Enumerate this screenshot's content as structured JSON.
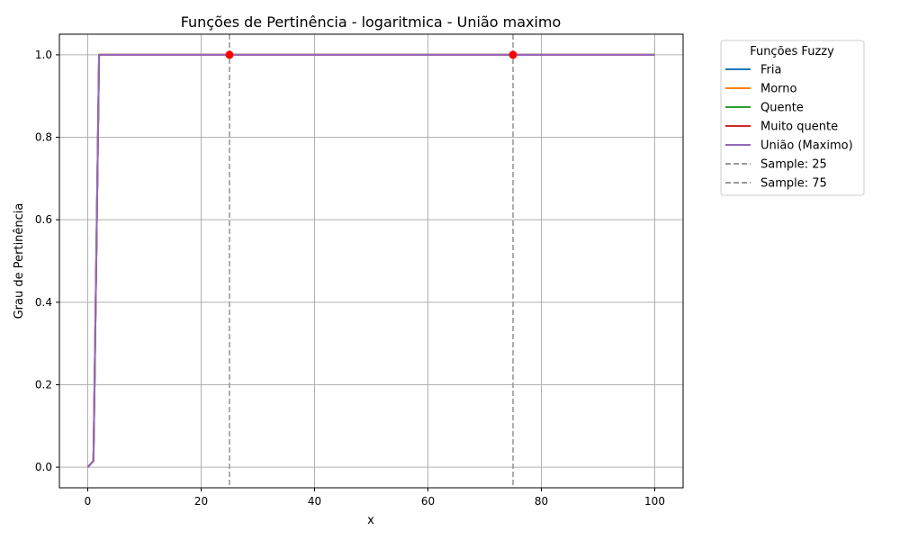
{
  "chart_data": {
    "type": "line",
    "title": "Funções de Pertinência - logaritmica - União maximo",
    "xlabel": "x",
    "ylabel": "Grau de Pertinência",
    "xlim": [
      -5,
      105
    ],
    "ylim": [
      -0.05,
      1.05
    ],
    "xticks": [
      0,
      20,
      40,
      60,
      80,
      100
    ],
    "yticks": [
      0.0,
      0.2,
      0.4,
      0.6,
      0.8,
      1.0
    ],
    "xtick_labels": [
      "0",
      "20",
      "40",
      "60",
      "80",
      "100"
    ],
    "ytick_labels": [
      "0.0",
      "0.2",
      "0.4",
      "0.6",
      "0.8",
      "1.0"
    ],
    "grid": true,
    "legend": {
      "title": "Funções Fuzzy",
      "placement": "outside-right-top"
    },
    "series": [
      {
        "name": "Fria",
        "color": "#1f77b4",
        "style": "solid",
        "points": [
          [
            0,
            0.0
          ],
          [
            1,
            0.015
          ],
          [
            1.2,
            0.2
          ],
          [
            1.4,
            0.4
          ],
          [
            1.6,
            0.6
          ],
          [
            1.8,
            0.8
          ],
          [
            2,
            1.0
          ],
          [
            100,
            1.0
          ]
        ]
      },
      {
        "name": "Morno",
        "color": "#ff7f0e",
        "style": "solid",
        "points": [
          [
            0,
            0.0
          ],
          [
            1,
            0.015
          ],
          [
            1.2,
            0.2
          ],
          [
            1.4,
            0.4
          ],
          [
            1.6,
            0.6
          ],
          [
            1.8,
            0.8
          ],
          [
            2,
            1.0
          ],
          [
            100,
            1.0
          ]
        ]
      },
      {
        "name": "Quente",
        "color": "#2ca02c",
        "style": "solid",
        "points": [
          [
            0,
            0.0
          ],
          [
            1,
            0.015
          ],
          [
            1.2,
            0.2
          ],
          [
            1.4,
            0.4
          ],
          [
            1.6,
            0.6
          ],
          [
            1.8,
            0.8
          ],
          [
            2,
            1.0
          ],
          [
            100,
            1.0
          ]
        ]
      },
      {
        "name": "Muito quente",
        "color": "#d62728",
        "style": "solid",
        "points": [
          [
            0,
            0.0
          ],
          [
            1,
            0.015
          ],
          [
            1.2,
            0.2
          ],
          [
            1.4,
            0.4
          ],
          [
            1.6,
            0.6
          ],
          [
            1.8,
            0.8
          ],
          [
            2,
            1.0
          ],
          [
            100,
            1.0
          ]
        ]
      },
      {
        "name": "União (Maximo)",
        "color": "#9467bd",
        "style": "solid",
        "points": [
          [
            0,
            0.0
          ],
          [
            1,
            0.015
          ],
          [
            1.2,
            0.2
          ],
          [
            1.4,
            0.4
          ],
          [
            1.6,
            0.6
          ],
          [
            1.8,
            0.8
          ],
          [
            2,
            1.0
          ],
          [
            100,
            1.0
          ]
        ]
      }
    ],
    "vlines": [
      {
        "name": "Sample: 25",
        "x": 25,
        "color": "#999999",
        "style": "dashed"
      },
      {
        "name": "Sample: 75",
        "x": 75,
        "color": "#999999",
        "style": "dashed"
      }
    ],
    "markers": [
      {
        "x": 25,
        "y": 1.0,
        "color": "#ff0000"
      },
      {
        "x": 75,
        "y": 1.0,
        "color": "#ff0000"
      }
    ]
  }
}
